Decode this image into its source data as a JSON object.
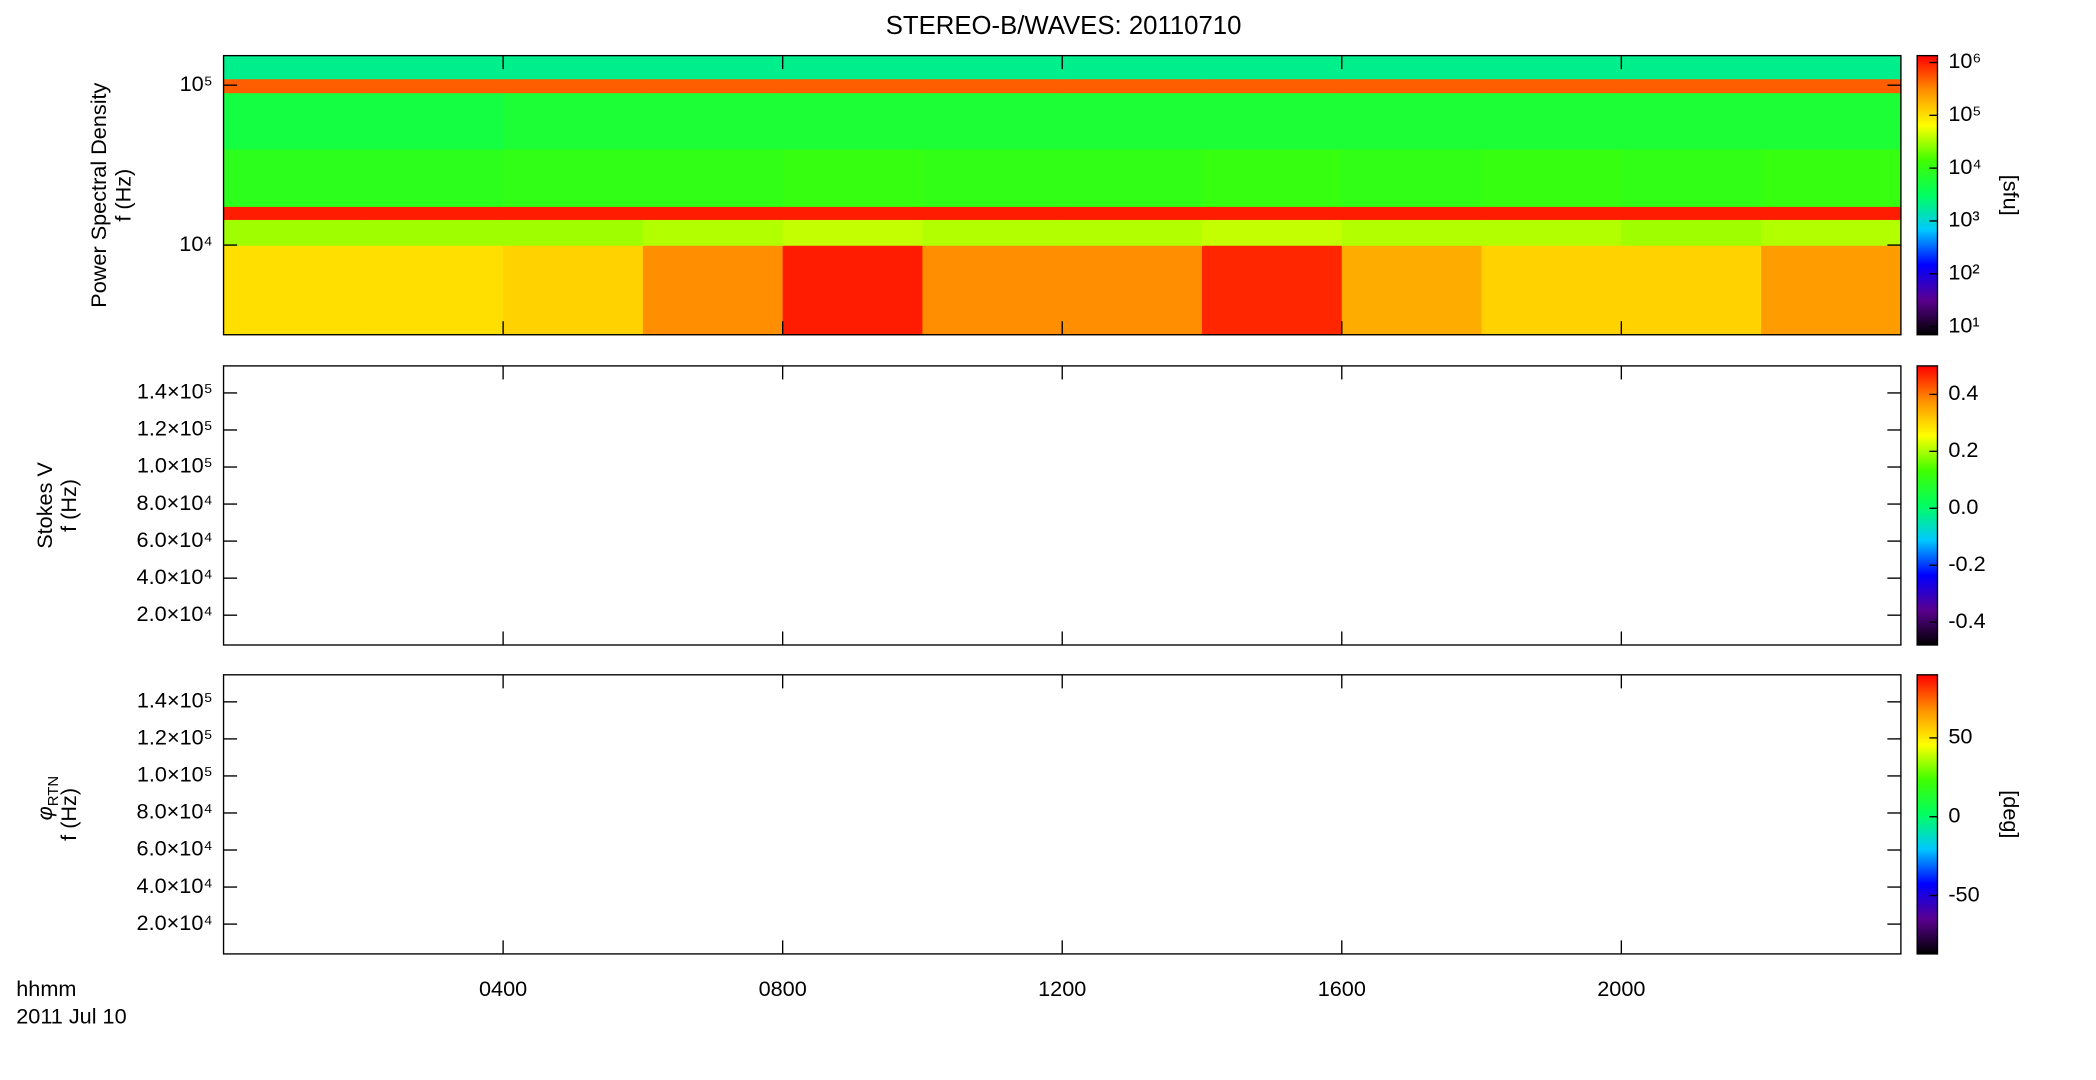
{
  "chart_data": {
    "type": "heatmap",
    "title": "STEREO-B/WAVES: 20110710",
    "x_label": "hhmm",
    "date_label": "2011 Jul 10",
    "xlim": [
      0,
      24
    ],
    "xticks": [
      {
        "value": 4,
        "label": "0400"
      },
      {
        "value": 8,
        "label": "0800"
      },
      {
        "value": 12,
        "label": "1200"
      },
      {
        "value": 16,
        "label": "1600"
      },
      {
        "value": 20,
        "label": "2000"
      }
    ],
    "colormap": [
      "#000000",
      "#5a0090",
      "#0000ff",
      "#00c8ff",
      "#00ff60",
      "#40ff00",
      "#ffff00",
      "#ff9000",
      "#ff0000"
    ],
    "panels": [
      {
        "ylabel": "Power Spectral Density",
        "ylabel_unit": "f (Hz)",
        "yscale": "log",
        "ylim": [
          2750,
          153000
        ],
        "yticks": [
          {
            "value": 10000,
            "label": "10⁴"
          },
          {
            "value": 100000,
            "label": "10⁵"
          }
        ],
        "cscale": "log",
        "clim": [
          7,
          1350000
        ],
        "colorbar_label": "[sfu]",
        "cticks": [
          {
            "value": 10,
            "label": "10¹"
          },
          {
            "value": 100,
            "label": "10²"
          },
          {
            "value": 1000,
            "label": "10³"
          },
          {
            "value": 10000,
            "label": "10⁴"
          },
          {
            "value": 100000,
            "label": "10⁵"
          },
          {
            "value": 1000000,
            "label": "10⁶"
          }
        ],
        "time_edges": [
          0,
          2,
          4,
          6,
          8,
          10,
          12,
          14,
          16,
          18,
          20,
          22,
          24
        ],
        "freq_edges": [
          2750,
          10000,
          14500,
          17500,
          40000,
          90000,
          110000,
          153000
        ],
        "z": [
          [
            100000,
            100000,
            120000,
            300000,
            1000000,
            300000,
            300000,
            900000,
            200000,
            120000,
            120000,
            250000
          ],
          [
            30000,
            30000,
            30000,
            35000,
            40000,
            35000,
            35000,
            40000,
            35000,
            35000,
            30000,
            35000
          ],
          [
            1000000,
            1000000,
            1000000,
            1000000,
            1000000,
            1000000,
            1000000,
            1000000,
            1000000,
            1000000,
            1000000,
            1000000
          ],
          [
            9000,
            9000,
            10000,
            10000,
            11000,
            10000,
            10000,
            11000,
            10000,
            11000,
            10000,
            11000
          ],
          [
            5000,
            5000,
            6000,
            6000,
            6000,
            6000,
            6000,
            6000,
            6000,
            6000,
            6000,
            6000
          ],
          [
            500000,
            500000,
            500000,
            500000,
            500000,
            500000,
            500000,
            500000,
            500000,
            500000,
            500000,
            500000
          ],
          [
            2000,
            2000,
            2000,
            2000,
            2000,
            2000,
            2000,
            2000,
            2000,
            2000,
            2000,
            2000
          ]
        ]
      },
      {
        "ylabel": "Stokes V",
        "ylabel_unit": "f (Hz)",
        "yscale": "linear",
        "ylim": [
          3900,
          154600
        ],
        "yticks": [
          {
            "value": 20000,
            "label": "2.0×10⁴"
          },
          {
            "value": 40000,
            "label": "4.0×10⁴"
          },
          {
            "value": 60000,
            "label": "6.0×10⁴"
          },
          {
            "value": 80000,
            "label": "8.0×10⁴"
          },
          {
            "value": 100000,
            "label": "1.0×10⁵"
          },
          {
            "value": 120000,
            "label": "1.2×10⁵"
          },
          {
            "value": 140000,
            "label": "1.4×10⁵"
          }
        ],
        "cscale": "linear",
        "clim": [
          -0.48,
          0.5
        ],
        "cticks": [
          -0.4,
          -0.2,
          {
            "value": 0,
            "label": "0.0"
          },
          0.2,
          0.4
        ]
      },
      {
        "ylabel": "φ",
        "ylabel_subscript": "RTN",
        "ylabel_unit": "f (Hz)",
        "yscale": "linear",
        "ylim": [
          3900,
          154600
        ],
        "yticks": [
          {
            "value": 20000,
            "label": "2.0×10⁴"
          },
          {
            "value": 40000,
            "label": "4.0×10⁴"
          },
          {
            "value": 60000,
            "label": "6.0×10⁴"
          },
          {
            "value": 80000,
            "label": "8.0×10⁴"
          },
          {
            "value": 100000,
            "label": "1.0×10⁵"
          },
          {
            "value": 120000,
            "label": "1.2×10⁵"
          },
          {
            "value": 140000,
            "label": "1.4×10⁵"
          }
        ],
        "cscale": "linear",
        "clim": [
          -87,
          90
        ],
        "colorbar_label": "[deg]",
        "cticks": [
          -50,
          0,
          50
        ]
      }
    ]
  }
}
